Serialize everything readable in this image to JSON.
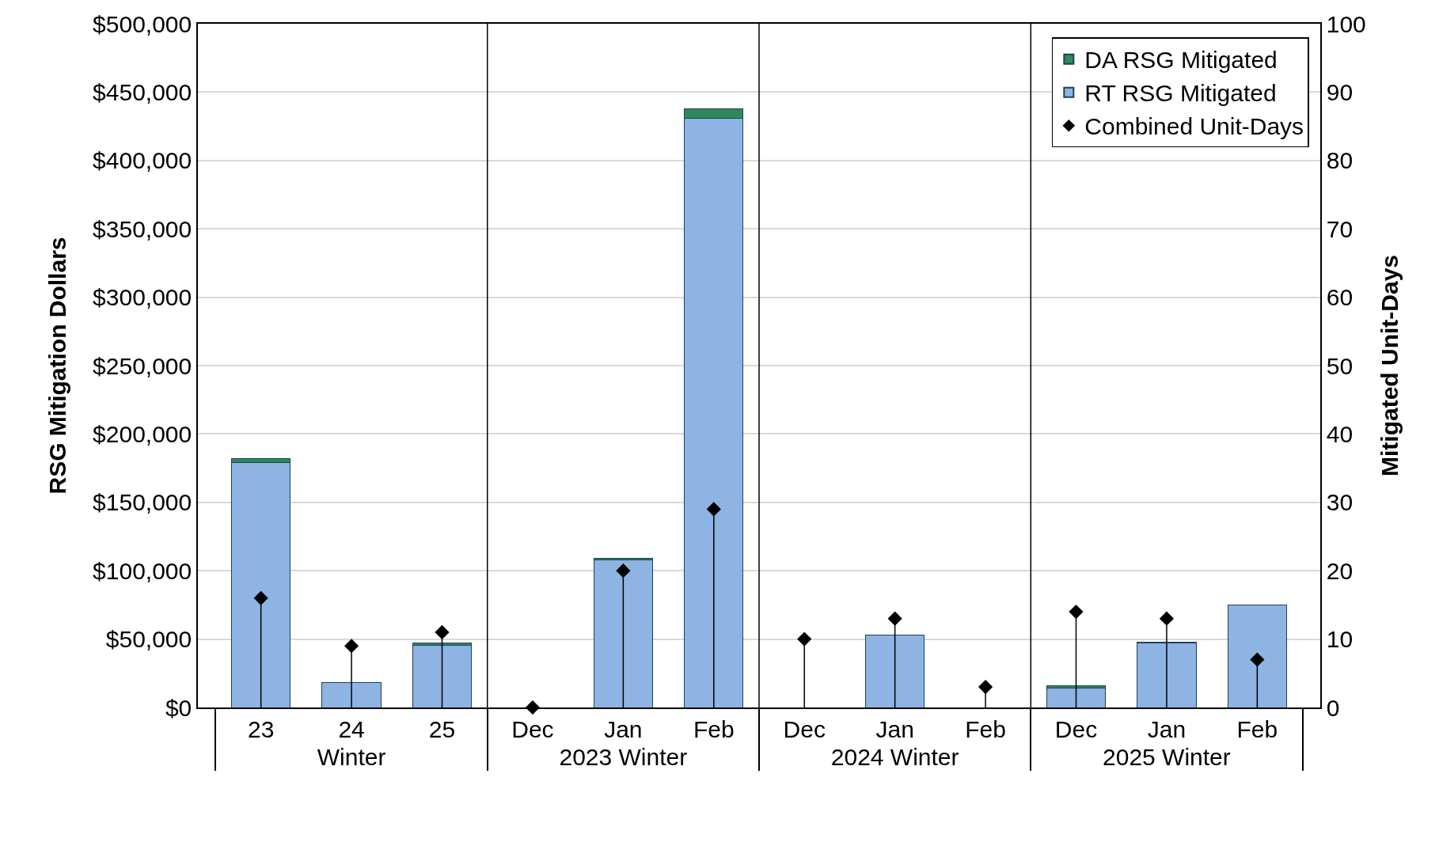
{
  "chart_data": {
    "type": "bar",
    "stacked": true,
    "categories": [
      "23",
      "24",
      "25",
      "Dec",
      "Jan",
      "Feb",
      "Dec",
      "Jan",
      "Feb",
      "Dec",
      "Jan",
      "Feb"
    ],
    "annotations": [
      "Winter",
      "2023 Winter",
      "2024 Winter",
      "2025 Winter"
    ],
    "series": [
      {
        "name": "RT RSG Mitigated",
        "color": "#8db4e2",
        "values": [
          179000,
          18000,
          45500,
          0,
          108000,
          431000,
          0,
          53000,
          0,
          14000,
          47000,
          75000
        ]
      },
      {
        "name": "DA RSG Mitigated",
        "color": "#2e8b57",
        "values": [
          3000,
          0,
          1500,
          0,
          1000,
          7000,
          0,
          0,
          0,
          2000,
          1000,
          0
        ]
      },
      {
        "name": "Combined Unit-Days",
        "type": "lollipop",
        "axis": "y2",
        "color": "#000000",
        "marker": "diamond",
        "values": [
          16,
          9,
          11,
          0,
          20,
          29,
          10,
          13,
          3,
          14,
          13,
          7
        ]
      }
    ],
    "ylabel": "RSG Mitigation Dollars",
    "y2label": "Mitigated Unit-Days",
    "ylim": [
      0,
      500000
    ],
    "yticks": [
      {
        "value": 0,
        "label": "$0"
      },
      {
        "value": 50000,
        "label": "$50,000"
      },
      {
        "value": 100000,
        "label": "$100,000"
      },
      {
        "value": 150000,
        "label": "$150,000"
      },
      {
        "value": 200000,
        "label": "$200,000"
      },
      {
        "value": 250000,
        "label": "$250,000"
      },
      {
        "value": 300000,
        "label": "$300,000"
      },
      {
        "value": 350000,
        "label": "$350,000"
      },
      {
        "value": 400000,
        "label": "$400,000"
      },
      {
        "value": 450000,
        "label": "$450,000"
      },
      {
        "value": 500000,
        "label": "$500,000"
      }
    ],
    "y2lim": [
      0,
      100
    ],
    "y2ticks": [
      0,
      10,
      20,
      30,
      40,
      50,
      60,
      70,
      80,
      90,
      100
    ],
    "grid": "y",
    "legend": "top right"
  }
}
